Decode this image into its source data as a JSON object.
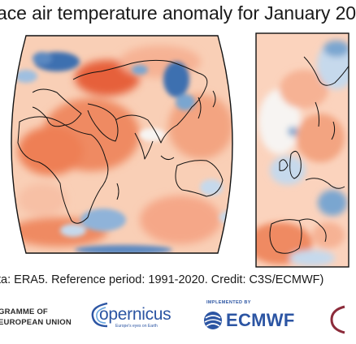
{
  "title": "ace air temperature anomaly for January 20",
  "caption": "ta: ERA5.  Reference period: 1991-2020.  Credit: C3S/ECMWF)",
  "maps": {
    "world_panel": "global-anomaly-map",
    "europe_panel": "europe-anomaly-map"
  },
  "colors": {
    "warm_strong": "#d8431f",
    "warm": "#ef8a62",
    "warm_light": "#fbd3bd",
    "neutral": "#f7f4f2",
    "cool_light": "#c6d9ec",
    "cool": "#7aa6d0",
    "cool_strong": "#3e6fb0",
    "coastline": "#111111",
    "logo_blue": "#2c55a3"
  },
  "footer": {
    "programme": "GRAMME OF\nEUROPEAN UNION",
    "copernicus_word": "opernicus",
    "copernicus_tag": "Europe's eyes on Earth",
    "implemented_by": "IMPLEMENTED BY",
    "ecmwf_word": "ECMWF"
  }
}
